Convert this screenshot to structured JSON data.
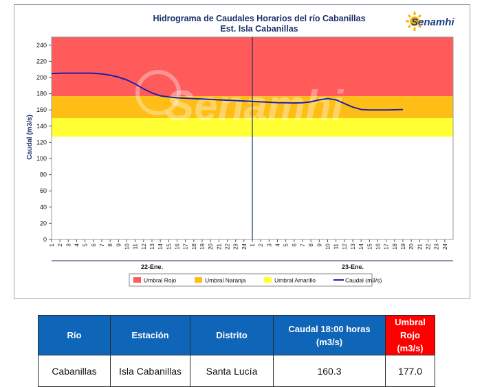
{
  "chart_data": {
    "type": "line",
    "title": "Hidrograma de Caudales Horarios del río Cabanillas",
    "subtitle": "Est. Isla Cabanillas",
    "ylabel": "Caudal  (m3/s)",
    "ylim": [
      0,
      250
    ],
    "yticks": [
      0,
      20,
      40,
      60,
      80,
      100,
      120,
      140,
      160,
      180,
      200,
      220,
      240
    ],
    "hours": [
      1,
      2,
      3,
      4,
      5,
      6,
      7,
      8,
      9,
      10,
      11,
      12,
      13,
      14,
      15,
      16,
      17,
      18,
      19,
      20,
      21,
      22,
      23,
      24
    ],
    "days": [
      "22-Ene.",
      "23-Ene."
    ],
    "grid": false,
    "legend_position": "bottom",
    "thresholds": [
      {
        "name": "Umbral Rojo",
        "from": 177,
        "to": 250,
        "color": "#ff5b5b"
      },
      {
        "name": "Umbral Naranja",
        "from": 150,
        "to": 177,
        "color": "#ffbe16"
      },
      {
        "name": "Umbral Amarillo",
        "from": 127,
        "to": 150,
        "color": "#ffff33"
      }
    ],
    "series": [
      {
        "name": "Caudal (m3/s)",
        "color": "#1f1fa8",
        "x": [
          1,
          2,
          3,
          4,
          5,
          6,
          7,
          8,
          9,
          10,
          11,
          12,
          13,
          14,
          15,
          16,
          17,
          18,
          19,
          20,
          21,
          22,
          23,
          24,
          25,
          26,
          27,
          28,
          29,
          30,
          31,
          32,
          33,
          34,
          35,
          36,
          37,
          38,
          39,
          40,
          41,
          42,
          43
        ],
        "values": [
          205,
          205.3,
          205.4,
          205.4,
          205.4,
          205.3,
          204.5,
          203,
          200.5,
          197,
          192,
          186,
          181,
          177.5,
          176,
          175,
          174.5,
          174,
          173.5,
          173,
          172.5,
          172,
          171.5,
          171,
          170.5,
          170,
          169.5,
          169,
          168.8,
          168.6,
          168.8,
          170,
          172.5,
          174,
          172.5,
          168,
          163.5,
          160.5,
          160,
          160,
          160,
          160.2,
          160.5
        ]
      }
    ]
  },
  "watermark": "Senamhi",
  "logo": {
    "text": "Senamhi"
  },
  "legend": [
    {
      "label": "Umbral Rojo",
      "color": "#ff5b5b"
    },
    {
      "label": "Umbral Naranja",
      "color": "#ffbe16"
    },
    {
      "label": "Umbral Amarillo",
      "color": "#ffff33"
    },
    {
      "label": "Caudal (m3/s)",
      "color": "#1f1fa8"
    }
  ],
  "table": {
    "headers": [
      "Río",
      "Estación",
      "Distrito",
      "Caudal  18:00 horas (m3/s)",
      "Umbral Rojo (m3/s)"
    ],
    "rows": [
      [
        "Cabanillas",
        "Isla Cabanillas",
        "Santa Lucía",
        "160.3",
        "177.0"
      ]
    ]
  }
}
